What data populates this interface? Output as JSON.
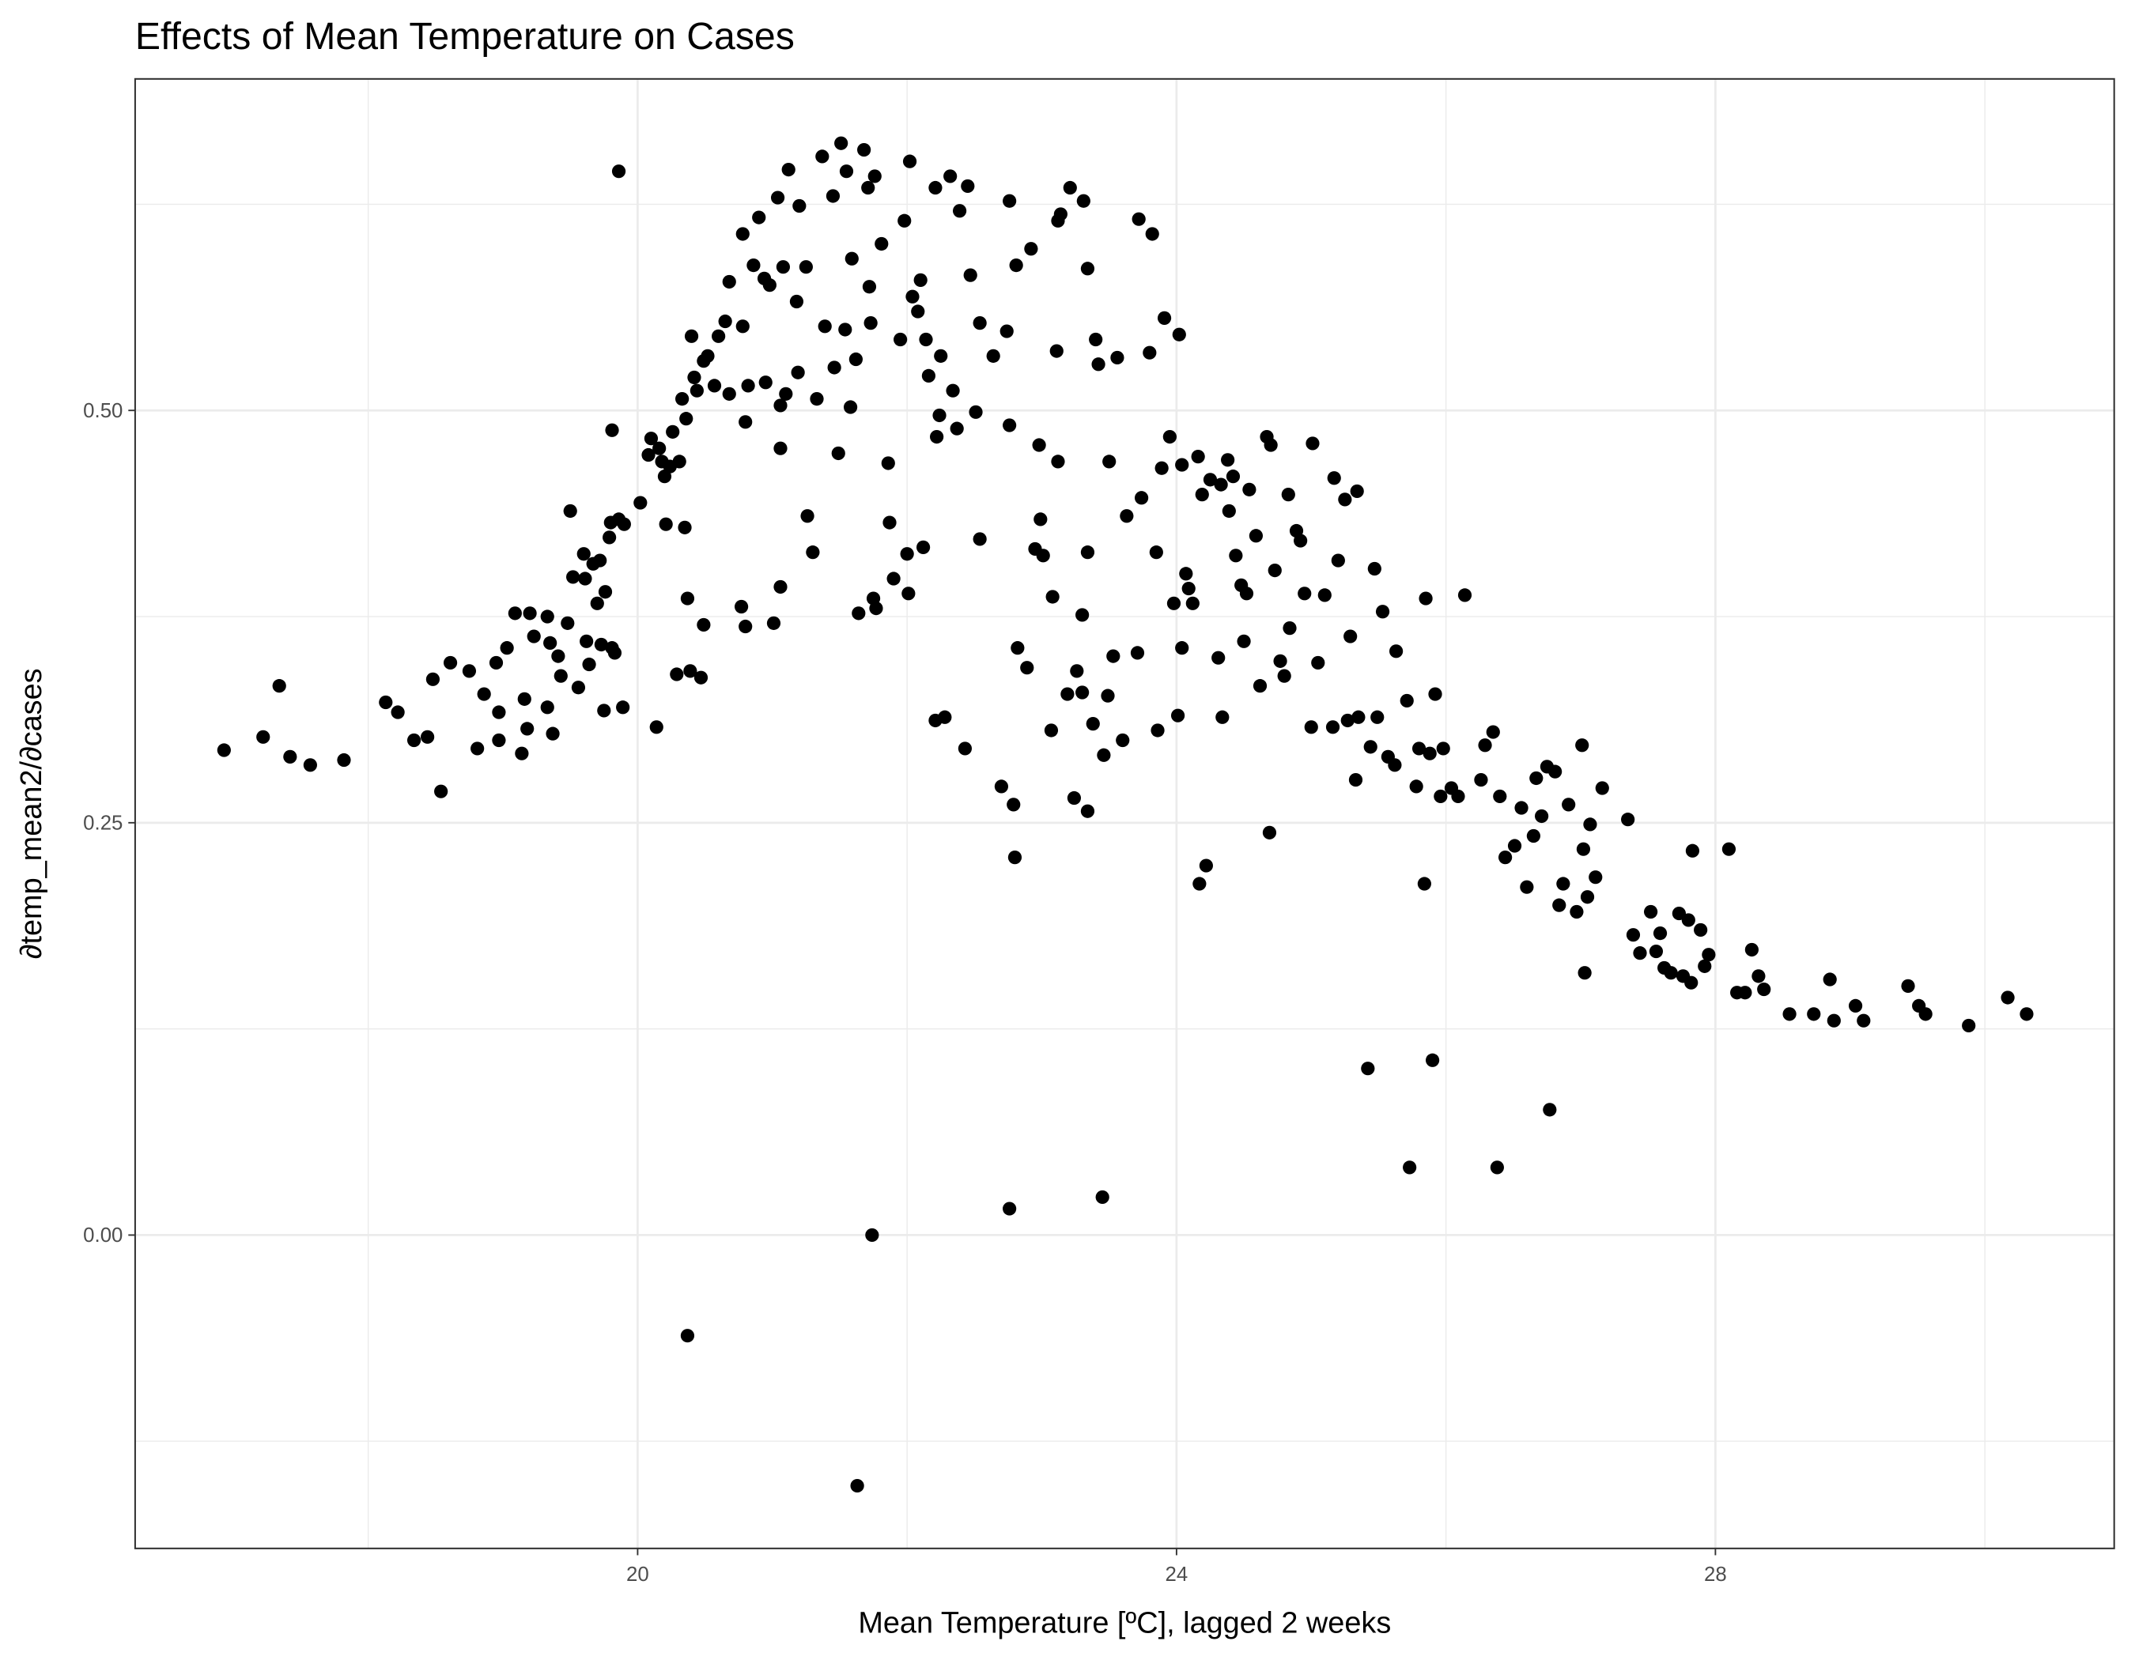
{
  "chart_data": {
    "type": "scatter",
    "title": "Effects of Mean Temperature on Cases",
    "x_label": "Mean Temperature [ºC], lagged 2 weeks",
    "y_label": "∂temp_mean2/∂cases",
    "color": "#000000",
    "grid": true,
    "xlim": [
      16.27,
      30.96
    ],
    "ylim": [
      -0.19,
      0.701
    ],
    "xticks": [
      20,
      24,
      28
    ],
    "yticks": [
      {
        "value": 0,
        "label": "0.00"
      },
      {
        "value": 0.25,
        "label": "0.25"
      },
      {
        "value": 0.5,
        "label": "0.50"
      }
    ],
    "x": [
      16.93,
      17.22,
      17.34,
      17.42,
      17.57,
      17.82,
      18.13,
      18.22,
      18.34,
      18.44,
      18.48,
      18.54,
      18.61,
      18.75,
      18.81,
      18.86,
      18.95,
      18.97,
      18.97,
      19.03,
      19.09,
      19.14,
      19.16,
      19.18,
      19.2,
      19.23,
      19.33,
      19.33,
      19.35,
      19.37,
      19.41,
      19.43,
      19.48,
      19.5,
      19.52,
      19.56,
      19.6,
      19.61,
      19.62,
      19.64,
      19.67,
      19.7,
      19.72,
      19.73,
      19.75,
      19.76,
      19.79,
      19.8,
      19.81,
      19.81,
      19.83,
      19.86,
      19.86,
      19.89,
      19.9,
      20.02,
      20.08,
      20.1,
      20.14,
      20.16,
      20.18,
      20.2,
      20.21,
      20.24,
      20.26,
      20.29,
      20.31,
      20.33,
      20.35,
      20.36,
      20.37,
      20.37,
      20.39,
      20.4,
      20.42,
      20.44,
      20.47,
      20.49,
      20.49,
      20.52,
      20.57,
      20.6,
      20.65,
      20.68,
      20.68,
      20.78,
      20.78,
      20.77,
      20.8,
      20.8,
      20.82,
      20.86,
      20.9,
      20.94,
      20.95,
      20.98,
      21.01,
      21.04,
      21.06,
      21.06,
      21.08,
      21.06,
      21.1,
      21.12,
      21.18,
      21.19,
      21.2,
      21.25,
      21.26,
      21.3,
      21.33,
      21.37,
      21.39,
      21.45,
      21.46,
      21.49,
      21.51,
      21.54,
      21.55,
      21.58,
      21.59,
      21.62,
      21.63,
      21.64,
      21.68,
      21.71,
      21.72,
      21.73,
      21.74,
      21.75,
      21.76,
      21.77,
      21.81,
      21.86,
      21.87,
      21.9,
      21.95,
      21.98,
      22.0,
      22.01,
      22.02,
      22.04,
      22.08,
      22.1,
      22.12,
      22.14,
      22.16,
      22.21,
      22.21,
      22.22,
      22.24,
      22.25,
      22.28,
      22.32,
      22.34,
      22.37,
      22.39,
      22.43,
      22.45,
      22.47,
      22.51,
      22.54,
      22.54,
      22.64,
      22.7,
      22.74,
      22.76,
      22.76,
      22.76,
      22.79,
      22.8,
      22.81,
      22.82,
      22.89,
      22.92,
      22.95,
      22.98,
      22.99,
      23.01,
      23.08,
      23.07,
      23.11,
      23.12,
      23.12,
      23.14,
      23.19,
      23.21,
      23.24,
      23.26,
      23.3,
      23.3,
      23.31,
      23.34,
      23.34,
      23.34,
      23.38,
      23.4,
      23.42,
      23.45,
      23.46,
      23.49,
      23.5,
      23.53,
      23.56,
      23.6,
      23.63,
      23.71,
      23.72,
      23.74,
      23.8,
      23.82,
      23.85,
      23.86,
      23.89,
      23.91,
      23.95,
      23.98,
      24.01,
      24.02,
      24.04,
      24.04,
      24.07,
      24.09,
      24.12,
      24.16,
      24.17,
      24.19,
      24.22,
      24.25,
      24.31,
      24.33,
      24.34,
      24.38,
      24.39,
      24.42,
      24.44,
      24.48,
      24.5,
      24.52,
      24.54,
      24.59,
      24.62,
      24.67,
      24.69,
      24.7,
      24.73,
      24.77,
      24.8,
      24.83,
      24.84,
      24.89,
      24.92,
      24.95,
      25.0,
      25.01,
      25.05,
      25.1,
      25.16,
      25.17,
      25.2,
      25.25,
      25.27,
      25.29,
      25.33,
      25.34,
      25.35,
      25.42,
      25.44,
      25.47,
      25.49,
      25.53,
      25.57,
      25.62,
      25.63,
      25.71,
      25.73,
      25.78,
      25.8,
      25.84,
      25.85,
      25.88,
      25.9,
      25.92,
      25.96,
      25.98,
      26.04,
      26.09,
      26.14,
      26.26,
      26.29,
      26.35,
      26.38,
      26.4,
      26.44,
      26.51,
      26.56,
      26.6,
      26.65,
      26.67,
      26.71,
      26.75,
      26.77,
      26.81,
      26.84,
      26.87,
      26.91,
      26.97,
      27.01,
      27.02,
      27.03,
      27.05,
      27.07,
      27.11,
      27.16,
      27.35,
      27.39,
      27.44,
      27.52,
      27.56,
      27.59,
      27.62,
      27.67,
      27.73,
      27.76,
      27.8,
      27.82,
      27.83,
      27.89,
      27.92,
      27.95,
      28.1,
      28.16,
      28.22,
      28.27,
      28.32,
      28.36,
      28.55,
      28.73,
      28.85,
      28.88,
      29.04,
      29.1,
      29.43,
      29.51,
      29.56,
      29.88,
      30.17,
      30.31
    ],
    "values": [
      0.294,
      0.302,
      0.333,
      0.29,
      0.285,
      0.288,
      0.323,
      0.317,
      0.3,
      0.302,
      0.337,
      0.269,
      0.347,
      0.342,
      0.295,
      0.328,
      0.347,
      0.317,
      0.3,
      0.356,
      0.377,
      0.292,
      0.325,
      0.307,
      0.377,
      0.363,
      0.375,
      0.32,
      0.359,
      0.304,
      0.351,
      0.339,
      0.371,
      0.439,
      0.399,
      0.332,
      0.413,
      0.398,
      0.36,
      0.346,
      0.407,
      0.383,
      0.409,
      0.358,
      0.318,
      0.39,
      0.423,
      0.432,
      0.488,
      0.356,
      0.353,
      0.645,
      0.434,
      0.32,
      0.431,
      0.444,
      0.473,
      0.483,
      0.308,
      0.477,
      0.469,
      0.46,
      0.431,
      0.466,
      0.487,
      0.34,
      0.469,
      0.507,
      0.429,
      0.495,
      0.386,
      -0.061,
      0.342,
      0.545,
      0.52,
      0.512,
      0.338,
      0.37,
      0.53,
      0.533,
      0.515,
      0.545,
      0.554,
      0.51,
      0.578,
      0.551,
      0.607,
      0.381,
      0.369,
      0.493,
      0.515,
      0.588,
      0.617,
      0.58,
      0.517,
      0.576,
      0.371,
      0.629,
      0.503,
      0.477,
      0.587,
      0.393,
      0.51,
      0.646,
      0.566,
      0.523,
      0.624,
      0.587,
      0.436,
      0.414,
      0.507,
      0.654,
      0.551,
      0.63,
      0.526,
      0.474,
      0.662,
      0.549,
      0.645,
      0.502,
      0.592,
      0.531,
      -0.152,
      0.377,
      0.658,
      0.635,
      0.575,
      0.553,
      0.0,
      0.386,
      0.642,
      0.38,
      0.601,
      0.468,
      0.432,
      0.398,
      0.543,
      0.615,
      0.413,
      0.389,
      0.651,
      0.569,
      0.56,
      0.579,
      0.417,
      0.543,
      0.521,
      0.312,
      0.635,
      0.484,
      0.497,
      0.533,
      0.314,
      0.642,
      0.512,
      0.489,
      0.621,
      0.295,
      0.636,
      0.582,
      0.499,
      0.553,
      0.422,
      0.533,
      0.272,
      0.548,
      0.627,
      0.491,
      0.016,
      0.261,
      0.229,
      0.588,
      0.356,
      0.344,
      0.598,
      0.416,
      0.479,
      0.434,
      0.412,
      0.387,
      0.306,
      0.536,
      0.469,
      0.615,
      0.619,
      0.328,
      0.635,
      0.265,
      0.342,
      0.329,
      0.376,
      0.627,
      0.257,
      0.414,
      0.586,
      0.31,
      0.543,
      0.528,
      0.023,
      0.291,
      0.327,
      0.469,
      0.351,
      0.532,
      0.3,
      0.436,
      0.353,
      0.616,
      0.447,
      0.535,
      0.607,
      0.414,
      0.306,
      0.465,
      0.556,
      0.484,
      0.383,
      0.315,
      0.546,
      0.467,
      0.356,
      0.401,
      0.392,
      0.383,
      0.472,
      0.213,
      0.449,
      0.224,
      0.458,
      0.35,
      0.455,
      0.314,
      0.47,
      0.439,
      0.46,
      0.412,
      0.394,
      0.36,
      0.389,
      0.452,
      0.424,
      0.333,
      0.484,
      0.244,
      0.479,
      0.403,
      0.348,
      0.339,
      0.449,
      0.368,
      0.427,
      0.421,
      0.389,
      0.308,
      0.48,
      0.347,
      0.388,
      0.308,
      0.459,
      0.409,
      0.446,
      0.312,
      0.363,
      0.276,
      0.451,
      0.314,
      0.101,
      0.296,
      0.404,
      0.314,
      0.378,
      0.29,
      0.285,
      0.354,
      0.324,
      0.041,
      0.272,
      0.295,
      0.213,
      0.386,
      0.292,
      0.106,
      0.328,
      0.266,
      0.295,
      0.271,
      0.266,
      0.388,
      0.276,
      0.297,
      0.305,
      0.041,
      0.266,
      0.229,
      0.236,
      0.259,
      0.211,
      0.242,
      0.277,
      0.254,
      0.284,
      0.076,
      0.281,
      0.2,
      0.213,
      0.261,
      0.196,
      0.297,
      0.234,
      0.159,
      0.205,
      0.249,
      0.217,
      0.271,
      0.252,
      0.182,
      0.171,
      0.196,
      0.172,
      0.183,
      0.162,
      0.159,
      0.195,
      0.157,
      0.191,
      0.153,
      0.233,
      0.185,
      0.163,
      0.17,
      0.234,
      0.147,
      0.147,
      0.173,
      0.157,
      0.149,
      0.134,
      0.134,
      0.155,
      0.13,
      0.139,
      0.13,
      0.151,
      0.139,
      0.134,
      0.127,
      0.144,
      0.134
    ]
  }
}
